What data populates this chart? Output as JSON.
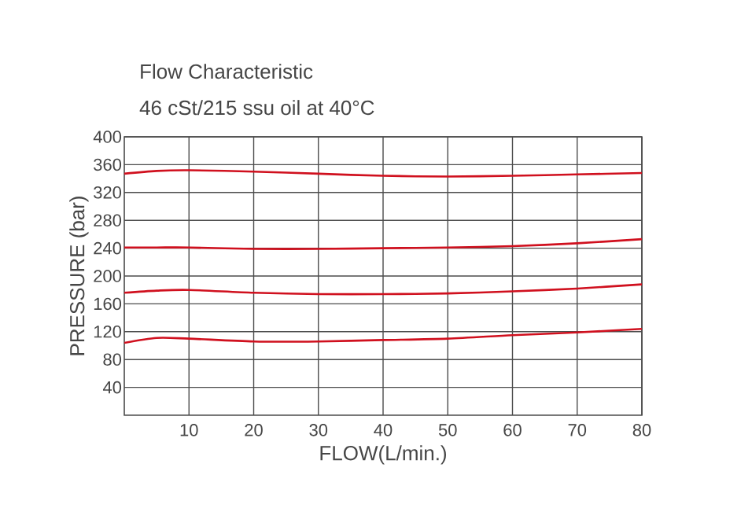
{
  "chart_data": {
    "type": "line",
    "title": "Flow Characteristic",
    "subtitle": "46 cSt/215 ssu oil at 40°C",
    "xlabel": "FLOW(L/min.)",
    "ylabel": "PRESSURE (bar)",
    "x": [
      0,
      5,
      10,
      20,
      30,
      40,
      50,
      60,
      70,
      80
    ],
    "series": [
      {
        "color": "#d0101e",
        "values": [
          347,
          351,
          352,
          350,
          347,
          344,
          343,
          344,
          346,
          348
        ]
      },
      {
        "color": "#d0101e",
        "values": [
          241,
          241,
          241,
          239,
          239,
          240,
          241,
          243,
          247,
          253
        ]
      },
      {
        "color": "#d0101e",
        "values": [
          176,
          179,
          180,
          176,
          174,
          174,
          175,
          178,
          182,
          188
        ]
      },
      {
        "color": "#d0101e",
        "values": [
          104,
          111,
          110,
          106,
          106,
          108,
          110,
          115,
          119,
          124
        ]
      }
    ],
    "xlim": [
      0,
      80
    ],
    "ylim": [
      0,
      400
    ],
    "xticks": [
      10,
      20,
      30,
      40,
      50,
      60,
      70,
      80
    ],
    "yticks": [
      40,
      80,
      120,
      160,
      200,
      240,
      280,
      320,
      360,
      400
    ],
    "grid": true
  }
}
